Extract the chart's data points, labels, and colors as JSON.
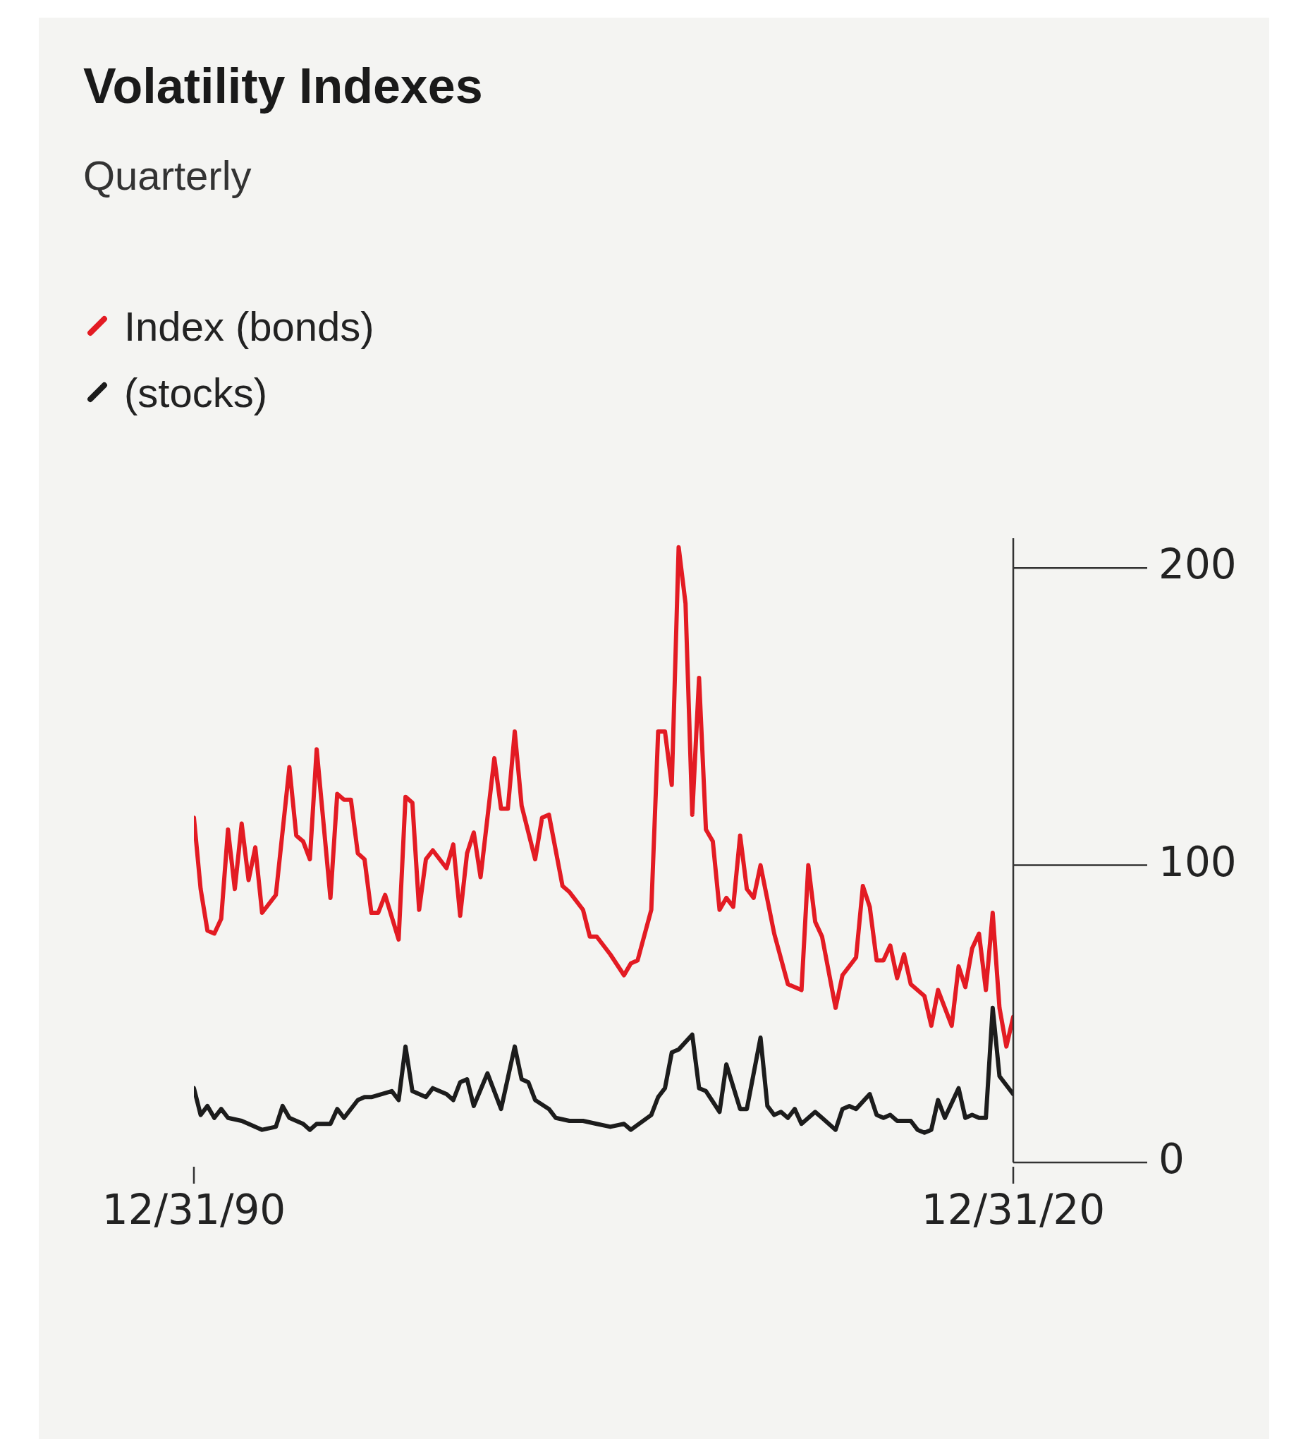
{
  "chart_data": {
    "type": "line",
    "title": "Volatility Indexes",
    "subtitle": "Quarterly",
    "legend": "top left",
    "xlim": [
      "1990-12-31",
      "2020-12-31"
    ],
    "xticks": [
      {
        "value": "1990-12-31",
        "label": "12/31/90"
      },
      {
        "value": "2020-12-31",
        "label": "12/31/20"
      }
    ],
    "ylim": [
      0,
      210
    ],
    "yticks": [
      0,
      100,
      200
    ],
    "series": [
      {
        "name": "Index (bonds)",
        "color": "#e31b23",
        "x": [
          "1990-12-31",
          "1991-03-31",
          "1991-06-30",
          "1991-09-30",
          "1991-12-31",
          "1992-03-31",
          "1992-06-30",
          "1992-09-30",
          "1992-12-31",
          "1993-03-31",
          "1993-06-30",
          "1993-12-31",
          "1994-06-30",
          "1994-09-30",
          "1994-12-31",
          "1995-03-31",
          "1995-06-30",
          "1995-12-31",
          "1996-03-31",
          "1996-06-30",
          "1996-09-30",
          "1996-12-31",
          "1997-03-31",
          "1997-06-30",
          "1997-09-30",
          "1997-12-31",
          "1998-06-30",
          "1998-09-30",
          "1998-12-31",
          "1999-03-31",
          "1999-06-30",
          "1999-09-30",
          "2000-03-31",
          "2000-06-30",
          "2000-09-30",
          "2000-12-31",
          "2001-03-31",
          "2001-06-30",
          "2001-12-31",
          "2002-03-31",
          "2002-06-30",
          "2002-09-30",
          "2002-12-31",
          "2003-06-30",
          "2003-09-30",
          "2003-12-31",
          "2004-06-30",
          "2004-09-30",
          "2005-03-31",
          "2005-06-30",
          "2005-09-30",
          "2006-03-31",
          "2006-09-30",
          "2006-12-31",
          "2007-03-31",
          "2007-09-30",
          "2007-12-31",
          "2008-03-31",
          "2008-06-30",
          "2008-09-30",
          "2008-12-31",
          "2009-03-31",
          "2009-06-30",
          "2009-09-30",
          "2009-12-31",
          "2010-03-31",
          "2010-06-30",
          "2010-09-30",
          "2010-12-31",
          "2011-03-31",
          "2011-06-30",
          "2011-09-30",
          "2012-03-31",
          "2012-09-30",
          "2013-03-31",
          "2013-06-30",
          "2013-09-30",
          "2013-12-31",
          "2014-06-30",
          "2014-09-30",
          "2015-03-31",
          "2015-06-30",
          "2015-09-30",
          "2015-12-31",
          "2016-03-31",
          "2016-06-30",
          "2016-09-30",
          "2016-12-31",
          "2017-03-31",
          "2017-09-30",
          "2017-12-31",
          "2018-03-31",
          "2018-09-30",
          "2018-12-31",
          "2019-03-31",
          "2019-06-30",
          "2019-09-30",
          "2019-12-31",
          "2020-03-31",
          "2020-06-30",
          "2020-09-30",
          "2020-12-31"
        ],
        "values": [
          116,
          92,
          78,
          77,
          82,
          112,
          92,
          114,
          95,
          106,
          84,
          90,
          133,
          110,
          108,
          102,
          139,
          89,
          124,
          122,
          122,
          104,
          102,
          84,
          84,
          90,
          75,
          123,
          121,
          85,
          102,
          105,
          99,
          107,
          83,
          104,
          111,
          96,
          136,
          119,
          119,
          145,
          120,
          102,
          116,
          117,
          93,
          91,
          85,
          76,
          76,
          70,
          63,
          67,
          68,
          85,
          145,
          145,
          127,
          207,
          188,
          117,
          163,
          112,
          108,
          85,
          89,
          86,
          110,
          92,
          89,
          100,
          77,
          60,
          58,
          100,
          81,
          76,
          52,
          63,
          69,
          93,
          86,
          68,
          68,
          73,
          62,
          70,
          60,
          56,
          46,
          58,
          46,
          66,
          59,
          72,
          77,
          58,
          84,
          52,
          39,
          49
        ]
      },
      {
        "name": "(stocks)",
        "color": "#1c1c1c",
        "x": [
          "1990-12-31",
          "1991-03-31",
          "1991-06-30",
          "1991-09-30",
          "1991-12-31",
          "1992-03-31",
          "1992-09-30",
          "1992-12-31",
          "1993-06-30",
          "1993-12-31",
          "1994-03-31",
          "1994-06-30",
          "1994-12-31",
          "1995-03-31",
          "1995-06-30",
          "1995-12-31",
          "1996-03-31",
          "1996-06-30",
          "1996-12-31",
          "1997-03-31",
          "1997-06-30",
          "1998-03-31",
          "1998-06-30",
          "1998-09-30",
          "1998-12-31",
          "1999-06-30",
          "1999-09-30",
          "2000-03-31",
          "2000-06-30",
          "2000-09-30",
          "2000-12-31",
          "2001-03-31",
          "2001-09-30",
          "2002-03-31",
          "2002-09-30",
          "2002-12-31",
          "2003-03-31",
          "2003-06-30",
          "2003-12-31",
          "2004-03-31",
          "2004-09-30",
          "2005-03-31",
          "2005-09-30",
          "2006-03-31",
          "2006-09-30",
          "2006-12-31",
          "2007-09-30",
          "2007-12-31",
          "2008-03-31",
          "2008-06-30",
          "2008-09-30",
          "2009-03-31",
          "2009-06-30",
          "2009-09-30",
          "2010-03-31",
          "2010-06-30",
          "2010-12-31",
          "2011-03-31",
          "2011-09-30",
          "2011-12-31",
          "2012-03-31",
          "2012-06-30",
          "2012-09-30",
          "2012-12-31",
          "2013-03-31",
          "2013-09-30",
          "2013-12-31",
          "2014-06-30",
          "2014-09-30",
          "2014-12-31",
          "2015-03-31",
          "2015-09-30",
          "2015-12-31",
          "2016-03-31",
          "2016-06-30",
          "2016-09-30",
          "2017-03-31",
          "2017-06-30",
          "2017-09-30",
          "2017-12-31",
          "2018-03-31",
          "2018-06-30",
          "2018-12-31",
          "2019-03-31",
          "2019-06-30",
          "2019-09-30",
          "2019-12-31",
          "2020-03-31",
          "2020-06-30",
          "2020-12-31"
        ],
        "values": [
          25,
          16,
          19,
          15,
          18,
          15,
          14,
          13,
          11,
          12,
          19,
          15,
          13,
          11,
          13,
          13,
          18,
          15,
          21,
          22,
          22,
          24,
          21,
          39,
          24,
          22,
          25,
          23,
          21,
          27,
          28,
          19,
          30,
          18,
          39,
          28,
          27,
          21,
          18,
          15,
          14,
          14,
          13,
          12,
          13,
          11,
          16,
          22,
          25,
          37,
          38,
          43,
          25,
          24,
          17,
          33,
          18,
          18,
          42,
          19,
          16,
          17,
          15,
          18,
          13,
          17,
          15,
          11,
          18,
          19,
          18,
          23,
          16,
          15,
          16,
          14,
          14,
          11,
          10,
          11,
          21,
          15,
          25,
          15,
          16,
          15,
          15,
          52,
          29,
          23
        ]
      }
    ]
  }
}
